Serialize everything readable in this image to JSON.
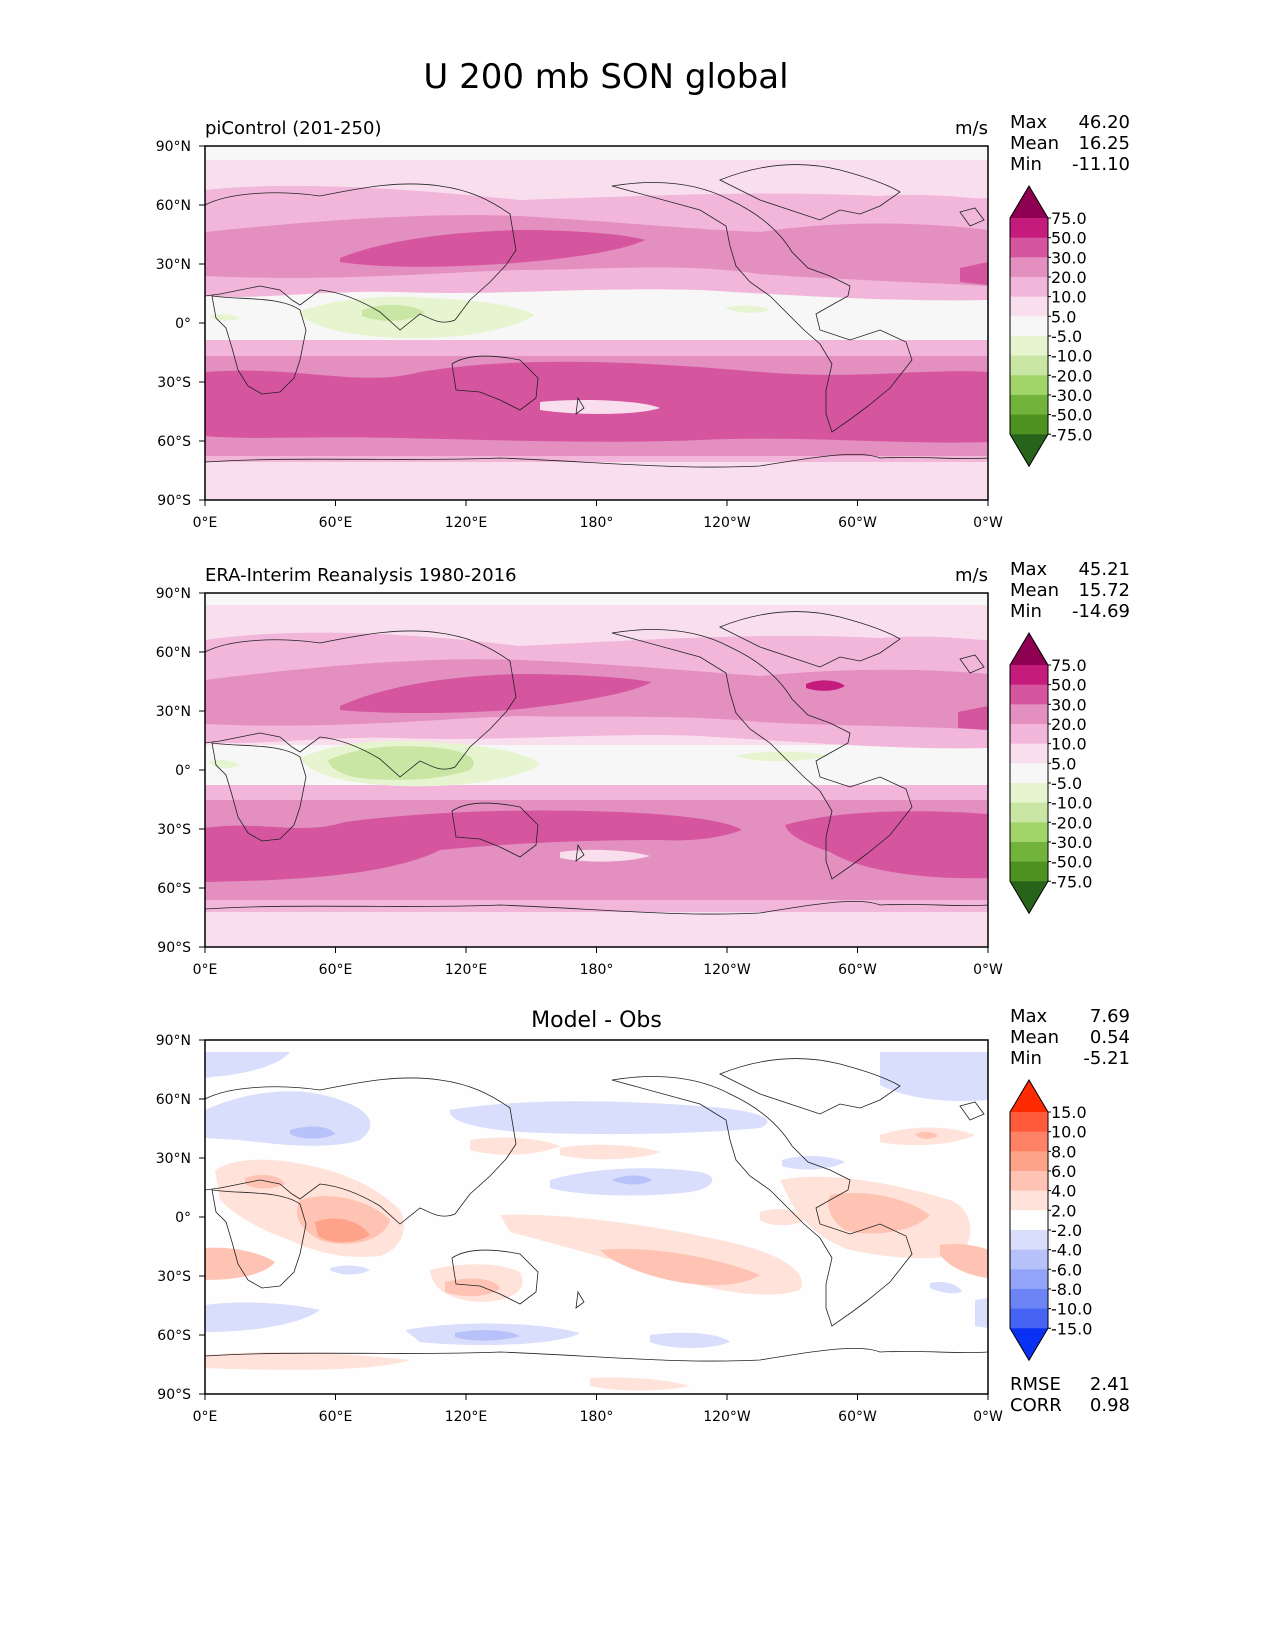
{
  "figure": {
    "title": "U 200 mb SON global"
  },
  "axes": {
    "lon_ticks": [
      "0°E",
      "60°E",
      "120°E",
      "180°",
      "120°W",
      "60°W",
      "0°W"
    ],
    "lat_ticks": [
      "90°N",
      "60°N",
      "30°N",
      "0°",
      "30°S",
      "60°S",
      "90°S"
    ]
  },
  "panels": [
    {
      "id": "model",
      "left_title": "piControl (201-250)",
      "center_title": "",
      "units": "m/s",
      "stats": [
        {
          "label": "Max",
          "value": "46.20"
        },
        {
          "label": "Mean",
          "value": "16.25"
        },
        {
          "label": "Min",
          "value": "-11.10"
        }
      ],
      "extra_stats": [],
      "colorbar": {
        "levels": [
          "75.0",
          "50.0",
          "30.0",
          "20.0",
          "10.0",
          "5.0",
          "-5.0",
          "-10.0",
          "-20.0",
          "-30.0",
          "-50.0",
          "-75.0"
        ],
        "colors": [
          "#8e0152",
          "#c51b7d",
          "#d6559f",
          "#e38fc0",
          "#f1b6da",
          "#f9dfee",
          "#f7f7f7",
          "#e6f5d0",
          "#c9e6a4",
          "#a1d469",
          "#72b43b",
          "#4d9221",
          "#276419"
        ]
      }
    },
    {
      "id": "obs",
      "left_title": "ERA-Interim Reanalysis 1980-2016",
      "center_title": "",
      "units": "m/s",
      "stats": [
        {
          "label": "Max",
          "value": "45.21"
        },
        {
          "label": "Mean",
          "value": "15.72"
        },
        {
          "label": "Min",
          "value": "-14.69"
        }
      ],
      "extra_stats": [],
      "colorbar": {
        "levels": [
          "75.0",
          "50.0",
          "30.0",
          "20.0",
          "10.0",
          "5.0",
          "-5.0",
          "-10.0",
          "-20.0",
          "-30.0",
          "-50.0",
          "-75.0"
        ],
        "colors": [
          "#8e0152",
          "#c51b7d",
          "#d6559f",
          "#e38fc0",
          "#f1b6da",
          "#f9dfee",
          "#f7f7f7",
          "#e6f5d0",
          "#c9e6a4",
          "#a1d469",
          "#72b43b",
          "#4d9221",
          "#276419"
        ]
      }
    },
    {
      "id": "diff",
      "left_title": "",
      "center_title": "Model - Obs",
      "units": "",
      "stats": [
        {
          "label": "Max",
          "value": "7.69"
        },
        {
          "label": "Mean",
          "value": "0.54"
        },
        {
          "label": "Min",
          "value": "-5.21"
        }
      ],
      "extra_stats": [
        {
          "label": "RMSE",
          "value": "2.41"
        },
        {
          "label": "CORR",
          "value": "0.98"
        }
      ],
      "colorbar": {
        "levels": [
          "15.0",
          "10.0",
          "8.0",
          "6.0",
          "4.0",
          "2.0",
          "-2.0",
          "-4.0",
          "-6.0",
          "-8.0",
          "-10.0",
          "-15.0"
        ],
        "colors": [
          "#ff2a00",
          "#ff5a3c",
          "#ff8266",
          "#ffa28a",
          "#ffc3b3",
          "#ffe2d9",
          "#fefefe",
          "#d9defc",
          "#b7c2fa",
          "#93a3f8",
          "#6d84f6",
          "#4564f4",
          "#0a30f3"
        ]
      }
    }
  ]
}
